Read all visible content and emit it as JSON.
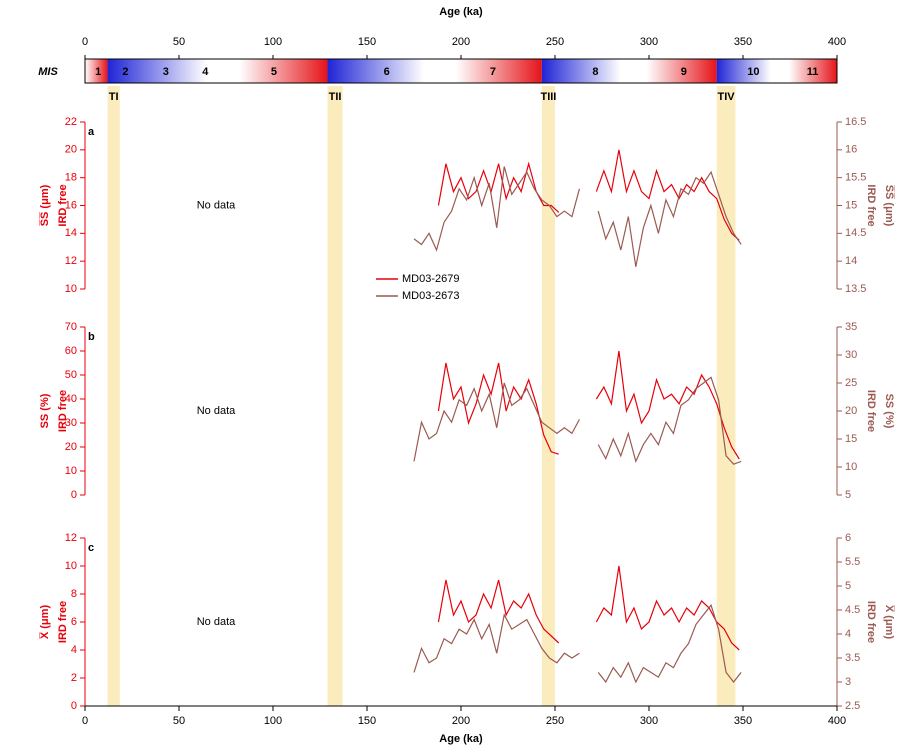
{
  "chart_data": [
    {
      "type": "mis",
      "label": "MIS",
      "xlabel": "Age (ka)",
      "xlim": [
        0,
        400
      ],
      "xticks": [
        0,
        50,
        100,
        150,
        200,
        250,
        300,
        350,
        400
      ],
      "stages": [
        "1",
        "2",
        "3",
        "4",
        "5",
        "6",
        "7",
        "8",
        "9",
        "10",
        "11"
      ],
      "stage_bounds": [
        0,
        14,
        29,
        57,
        71,
        130,
        191,
        243,
        300,
        337,
        374,
        400
      ],
      "glacial_color": "#1f24d6",
      "interglacial_color": "#e5141a",
      "shading_color": "#fbecbe",
      "terminations": [
        {
          "label": "TI",
          "range": [
            12,
            18.5
          ]
        },
        {
          "label": "TII",
          "range": [
            129,
            137
          ]
        },
        {
          "label": "TIII",
          "range": [
            243,
            250
          ]
        },
        {
          "label": "TIV",
          "range": [
            336,
            346
          ]
        }
      ]
    },
    {
      "type": "line",
      "panel_label": "a",
      "annotation": "No data",
      "legend": true,
      "ylabel": [
        "S̅S̅ (μm)",
        "IRD free"
      ],
      "y2label": [
        "S̅S̅ (μm)",
        "IRD free"
      ],
      "xlim": [
        0,
        400
      ],
      "ylim": [
        10,
        22
      ],
      "yticks": [
        10,
        12,
        14,
        16,
        18,
        20,
        22
      ],
      "y2lim": [
        13.5,
        16.5
      ],
      "y2ticks": [
        13.5,
        14,
        14.5,
        15,
        15.5,
        16,
        16.5
      ],
      "series": [
        {
          "name": "MD03-2679",
          "color": "#e8000b",
          "x": [
            188,
            192,
            196,
            200,
            204,
            208,
            212,
            216,
            220,
            224,
            228,
            232,
            236,
            240,
            244,
            248,
            252,
            262,
            272,
            276,
            280,
            284,
            288,
            292,
            296,
            300,
            304,
            308,
            312,
            316,
            320,
            324,
            328,
            332,
            336,
            340,
            344,
            348
          ],
          "values": [
            16,
            19,
            17,
            18,
            16.5,
            17,
            18.5,
            17,
            19,
            16.5,
            18,
            17,
            19,
            17,
            16,
            16,
            15.5,
            null,
            17,
            18.5,
            17,
            20,
            17,
            18.5,
            17,
            16.5,
            18.5,
            17,
            17.5,
            16.5,
            17.5,
            17,
            18,
            17,
            16.5,
            15,
            14,
            13.5
          ]
        },
        {
          "name": "MD03-2673",
          "color": "#9b5a52",
          "axis": "y2",
          "x": [
            175,
            179,
            183,
            187,
            191,
            195,
            199,
            203,
            207,
            211,
            215,
            219,
            223,
            227,
            231,
            235,
            239,
            243,
            247,
            251,
            255,
            259,
            263,
            268,
            273,
            277,
            281,
            285,
            289,
            293,
            297,
            301,
            305,
            309,
            313,
            317,
            321,
            325,
            329,
            333,
            337,
            341,
            345,
            349
          ],
          "values": [
            14.4,
            14.3,
            14.5,
            14.2,
            14.7,
            14.9,
            15.3,
            15.1,
            15.5,
            15,
            15.4,
            14.6,
            15.7,
            15.2,
            15.4,
            15.6,
            15.3,
            15.1,
            15,
            14.8,
            14.9,
            14.8,
            15.3,
            null,
            14.9,
            14.4,
            14.7,
            14.2,
            14.8,
            13.9,
            14.6,
            15,
            14.5,
            15.1,
            14.8,
            15.3,
            15.2,
            15.5,
            15.4,
            15.6,
            15.2,
            14.8,
            14.5,
            14.3
          ]
        }
      ]
    },
    {
      "type": "line",
      "panel_label": "b",
      "annotation": "No data",
      "legend": false,
      "ylabel": [
        "SS (%)",
        "IRD free"
      ],
      "y2label": [
        "SS (%)",
        "IRD free"
      ],
      "xlim": [
        0,
        400
      ],
      "ylim": [
        0,
        70
      ],
      "yticks": [
        0,
        10,
        20,
        30,
        40,
        50,
        60,
        70
      ],
      "y2lim": [
        5,
        35
      ],
      "y2ticks": [
        5,
        10,
        15,
        20,
        25,
        30,
        35
      ],
      "series": [
        {
          "color": "#e8000b",
          "x": [
            188,
            192,
            196,
            200,
            204,
            208,
            212,
            216,
            220,
            224,
            228,
            232,
            236,
            240,
            244,
            248,
            252,
            262,
            272,
            276,
            280,
            284,
            288,
            292,
            296,
            300,
            304,
            308,
            312,
            316,
            320,
            324,
            328,
            332,
            336,
            340,
            344,
            348
          ],
          "values": [
            35,
            55,
            40,
            45,
            30,
            38,
            50,
            42,
            55,
            35,
            45,
            40,
            48,
            38,
            25,
            18,
            17,
            null,
            40,
            45,
            38,
            60,
            35,
            42,
            30,
            35,
            48,
            40,
            42,
            38,
            45,
            42,
            50,
            45,
            38,
            28,
            20,
            15
          ]
        },
        {
          "color": "#9b5a52",
          "axis": "y2",
          "x": [
            175,
            179,
            183,
            187,
            191,
            195,
            199,
            203,
            207,
            211,
            215,
            219,
            223,
            227,
            231,
            235,
            239,
            243,
            247,
            251,
            255,
            259,
            263,
            268,
            273,
            277,
            281,
            285,
            289,
            293,
            297,
            301,
            305,
            309,
            313,
            317,
            321,
            325,
            329,
            333,
            337,
            341,
            345,
            349
          ],
          "values": [
            11,
            18,
            15,
            16,
            20,
            18,
            22,
            21,
            24,
            20,
            23,
            17,
            25,
            21,
            22,
            24,
            21,
            18,
            17,
            16,
            17,
            16,
            18.5,
            null,
            14,
            11.5,
            15,
            12,
            16,
            11,
            14,
            16,
            14,
            18,
            16,
            21,
            22,
            24,
            25,
            26,
            22,
            12,
            10.5,
            11
          ]
        }
      ]
    },
    {
      "type": "line",
      "panel_label": "c",
      "annotation": "No data",
      "legend": false,
      "xlabel": "Age (ka)",
      "xticks": [
        0,
        50,
        100,
        150,
        200,
        250,
        300,
        350,
        400
      ],
      "ylabel": [
        "X̅ (μm)",
        "IRD free"
      ],
      "y2label": [
        "X̅ (μm)",
        "IRD free"
      ],
      "xlim": [
        0,
        400
      ],
      "ylim": [
        0,
        12
      ],
      "yticks": [
        0,
        2,
        4,
        6,
        8,
        10,
        12
      ],
      "y2lim": [
        2.5,
        6
      ],
      "y2ticks": [
        2.5,
        3,
        3.5,
        4,
        4.5,
        5,
        5.5,
        6
      ],
      "series": [
        {
          "color": "#e8000b",
          "x": [
            188,
            192,
            196,
            200,
            204,
            208,
            212,
            216,
            220,
            224,
            228,
            232,
            236,
            240,
            244,
            248,
            252,
            262,
            272,
            276,
            280,
            284,
            288,
            292,
            296,
            300,
            304,
            308,
            312,
            316,
            320,
            324,
            328,
            332,
            336,
            340,
            344,
            348
          ],
          "values": [
            6,
            9,
            6.5,
            7.5,
            6,
            6.5,
            8,
            7,
            9,
            6.5,
            7.5,
            7,
            8,
            6.5,
            5.5,
            5,
            4.5,
            null,
            6,
            7,
            6.5,
            10,
            6,
            7,
            5.5,
            6,
            7.5,
            6.5,
            7,
            6,
            7,
            6.5,
            7.5,
            7,
            6,
            5.5,
            4.5,
            4
          ]
        },
        {
          "color": "#9b5a52",
          "axis": "y2",
          "x": [
            175,
            179,
            183,
            187,
            191,
            195,
            199,
            203,
            207,
            211,
            215,
            219,
            223,
            227,
            231,
            235,
            239,
            243,
            247,
            251,
            255,
            259,
            263,
            268,
            273,
            277,
            281,
            285,
            289,
            293,
            297,
            301,
            305,
            309,
            313,
            317,
            321,
            325,
            329,
            333,
            337,
            341,
            345,
            349
          ],
          "values": [
            3.2,
            3.7,
            3.4,
            3.5,
            3.9,
            3.8,
            4.1,
            4,
            4.3,
            3.9,
            4.2,
            3.6,
            4.4,
            4.1,
            4.2,
            4.3,
            4,
            3.7,
            3.5,
            3.4,
            3.6,
            3.5,
            3.6,
            null,
            3.2,
            3,
            3.3,
            3.1,
            3.4,
            3,
            3.3,
            3.2,
            3.1,
            3.4,
            3.3,
            3.6,
            3.8,
            4.2,
            4.4,
            4.6,
            4.1,
            3.2,
            3,
            3.2
          ]
        }
      ]
    }
  ]
}
